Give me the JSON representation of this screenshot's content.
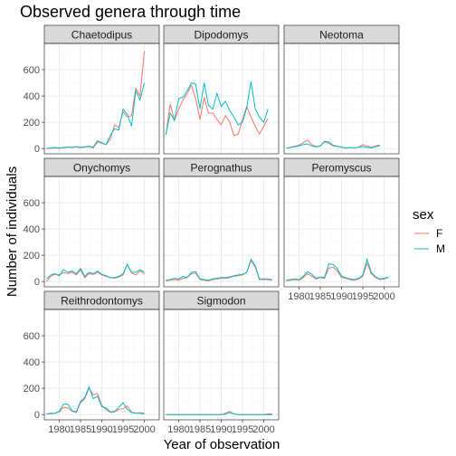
{
  "chart_data": {
    "type": "line",
    "title": "Observed genera through time",
    "xlabel": "Year of observation",
    "ylabel": "Number of individuals",
    "legend_title": "sex",
    "legend_placement": "right",
    "grid": true,
    "facet_wrap_cols": 3,
    "xlim": [
      1976.5,
      2003.5
    ],
    "ylim": [
      -40,
      800
    ],
    "x_ticks": [
      1980,
      1985,
      1990,
      1995,
      2000
    ],
    "y_ticks": [
      0,
      200,
      400,
      600
    ],
    "x": [
      1977,
      1978,
      1979,
      1980,
      1981,
      1982,
      1983,
      1984,
      1985,
      1986,
      1987,
      1988,
      1989,
      1990,
      1991,
      1992,
      1993,
      1994,
      1995,
      1996,
      1997,
      1998,
      1999,
      2000,
      2001,
      2002
    ],
    "series_names": [
      "F",
      "M"
    ],
    "series_colors": [
      "#F8766D",
      "#00BFC4"
    ],
    "panels": [
      {
        "name": "Chaetodipus",
        "series": [
          {
            "name": "F",
            "values": [
              0,
              2,
              5,
              3,
              5,
              10,
              8,
              12,
              6,
              10,
              15,
              5,
              50,
              40,
              30,
              70,
              180,
              160,
              280,
              240,
              250,
              460,
              400,
              740,
              null,
              null
            ]
          },
          {
            "name": "M",
            "values": [
              1,
              5,
              8,
              5,
              8,
              12,
              10,
              15,
              10,
              14,
              18,
              10,
              60,
              45,
              30,
              100,
              150,
              140,
              300,
              260,
              170,
              440,
              370,
              500,
              null,
              null
            ]
          }
        ]
      },
      {
        "name": "Dipodomys",
        "series": [
          {
            "name": "F",
            "values": [
              105,
              340,
              215,
              300,
              370,
              420,
              480,
              380,
              220,
              390,
              270,
              270,
              220,
              180,
              250,
              200,
              100,
              110,
              220,
              320,
              240,
              170,
              110,
              170,
              230,
              null
            ]
          },
          {
            "name": "M",
            "values": [
              105,
              270,
              215,
              380,
              390,
              440,
              500,
              490,
              300,
              500,
              330,
              300,
              420,
              320,
              360,
              290,
              240,
              180,
              200,
              310,
              510,
              300,
              240,
              200,
              300,
              null
            ]
          }
        ]
      },
      {
        "name": "Neotoma",
        "series": [
          {
            "name": "F",
            "values": [
              2,
              10,
              18,
              25,
              45,
              65,
              30,
              15,
              20,
              50,
              40,
              20,
              18,
              10,
              5,
              8,
              5,
              10,
              30,
              20,
              10,
              20,
              28,
              null,
              null,
              null
            ]
          },
          {
            "name": "M",
            "values": [
              2,
              8,
              14,
              20,
              30,
              35,
              20,
              12,
              20,
              55,
              50,
              25,
              18,
              10,
              5,
              8,
              5,
              10,
              15,
              10,
              5,
              15,
              20,
              null,
              null,
              null
            ]
          }
        ]
      },
      {
        "name": "Onychomys",
        "series": [
          {
            "name": "F",
            "values": [
              0,
              40,
              55,
              50,
              70,
              60,
              70,
              50,
              90,
              30,
              60,
              55,
              70,
              50,
              40,
              30,
              25,
              35,
              50,
              130,
              65,
              50,
              80,
              60,
              null,
              null
            ]
          },
          {
            "name": "M",
            "values": [
              20,
              50,
              60,
              45,
              90,
              70,
              80,
              60,
              100,
              40,
              70,
              60,
              80,
              55,
              45,
              30,
              30,
              40,
              60,
              130,
              70,
              70,
              90,
              70,
              null,
              null
            ]
          }
        ]
      },
      {
        "name": "Perognathus",
        "series": [
          {
            "name": "F",
            "values": [
              5,
              10,
              15,
              10,
              25,
              30,
              60,
              65,
              15,
              10,
              5,
              15,
              20,
              25,
              25,
              30,
              40,
              45,
              50,
              70,
              160,
              110,
              15,
              15,
              15,
              10
            ]
          },
          {
            "name": "M",
            "values": [
              10,
              15,
              25,
              20,
              40,
              30,
              70,
              75,
              20,
              15,
              10,
              20,
              25,
              30,
              30,
              35,
              45,
              50,
              55,
              70,
              170,
              120,
              20,
              20,
              20,
              15
            ]
          }
        ]
      },
      {
        "name": "Peromyscus",
        "series": [
          {
            "name": "F",
            "values": [
              5,
              10,
              15,
              10,
              30,
              60,
              40,
              20,
              30,
              25,
              100,
              110,
              80,
              30,
              25,
              15,
              10,
              20,
              40,
              140,
              60,
              30,
              15,
              20,
              30,
              null
            ]
          },
          {
            "name": "M",
            "values": [
              10,
              15,
              20,
              15,
              40,
              75,
              55,
              25,
              35,
              30,
              135,
              130,
              100,
              40,
              30,
              20,
              15,
              25,
              50,
              170,
              70,
              35,
              20,
              25,
              35,
              null
            ]
          }
        ]
      },
      {
        "name": "Reithrodontomys",
        "series": [
          {
            "name": "F",
            "values": [
              5,
              5,
              10,
              20,
              55,
              50,
              25,
              15,
              90,
              120,
              200,
              150,
              160,
              70,
              40,
              15,
              20,
              40,
              45,
              65,
              20,
              10,
              15,
              10,
              null,
              null
            ]
          },
          {
            "name": "M",
            "values": [
              5,
              10,
              10,
              25,
              80,
              80,
              30,
              20,
              100,
              130,
              210,
              120,
              140,
              60,
              50,
              20,
              25,
              55,
              90,
              40,
              15,
              10,
              10,
              5,
              null,
              null
            ]
          }
        ]
      },
      {
        "name": "Sigmodon",
        "series": [
          {
            "name": "F",
            "values": [
              0,
              0,
              0,
              0,
              0,
              0,
              0,
              0,
              0,
              0,
              0,
              0,
              0,
              0,
              10,
              25,
              5,
              0,
              0,
              0,
              0,
              0,
              0,
              0,
              5,
              5
            ]
          },
          {
            "name": "M",
            "values": [
              0,
              0,
              0,
              0,
              0,
              0,
              0,
              0,
              0,
              0,
              0,
              0,
              0,
              0,
              5,
              15,
              5,
              0,
              0,
              0,
              0,
              0,
              0,
              0,
              0,
              0
            ]
          }
        ]
      }
    ]
  }
}
